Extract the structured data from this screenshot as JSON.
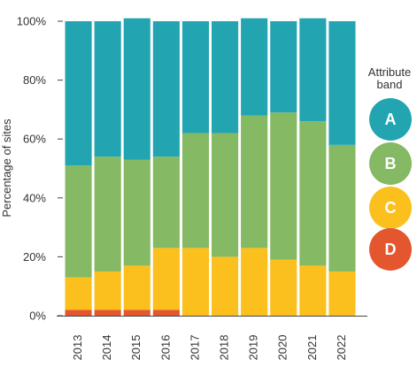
{
  "chart_data": {
    "type": "bar",
    "stacked": true,
    "orientation": "vertical",
    "categories": [
      "2013",
      "2014",
      "2015",
      "2016",
      "2017",
      "2018",
      "2019",
      "2020",
      "2021",
      "2022"
    ],
    "series": [
      {
        "name": "D",
        "color": "#e4572e",
        "values": [
          2,
          2,
          2,
          2,
          0,
          0,
          0,
          0,
          0,
          0
        ]
      },
      {
        "name": "C",
        "color": "#fcc01e",
        "values": [
          11,
          13,
          15,
          21,
          23,
          20,
          23,
          19,
          17,
          15
        ]
      },
      {
        "name": "B",
        "color": "#85b963",
        "values": [
          38,
          39,
          36,
          31,
          39,
          42,
          45,
          50,
          49,
          43
        ]
      },
      {
        "name": "A",
        "color": "#22a5b1",
        "values": [
          49,
          46,
          48,
          46,
          38,
          38,
          33,
          31,
          35,
          42
        ]
      }
    ],
    "ylabel": "Percentage of sites",
    "ylim": [
      0,
      100
    ],
    "yticks": [
      "0%",
      "20%",
      "40%",
      "60%",
      "80%",
      "100%"
    ],
    "ytick_values": [
      0,
      20,
      40,
      60,
      80,
      100
    ],
    "grid": false,
    "legend": {
      "title_line1": "Attribute",
      "title_line2": "band",
      "position": "right",
      "items": [
        {
          "label": "A",
          "color": "#22a5b1"
        },
        {
          "label": "B",
          "color": "#85b963"
        },
        {
          "label": "C",
          "color": "#fcc01e"
        },
        {
          "label": "D",
          "color": "#e4572e"
        }
      ]
    }
  }
}
